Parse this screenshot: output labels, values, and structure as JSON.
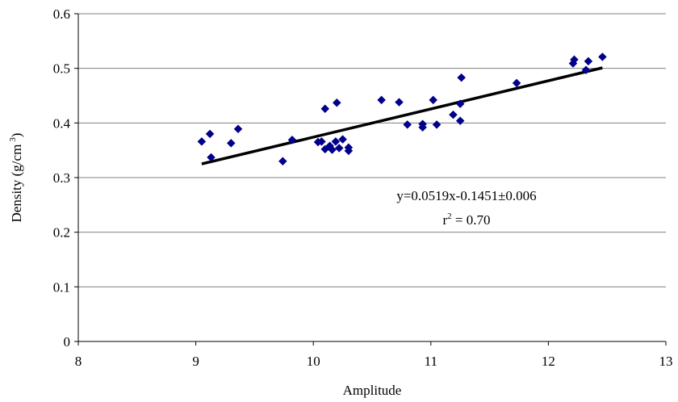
{
  "chart_data": {
    "type": "scatter",
    "xlabel": "Amplitude",
    "ylabel": "Density (g/cm",
    "ylabel_sup": "3",
    "ylabel_close": ")",
    "xlim": [
      8,
      13
    ],
    "ylim": [
      0,
      0.6
    ],
    "xticks": [
      8,
      9,
      10,
      11,
      12,
      13
    ],
    "yticks": [
      0,
      0.1,
      0.2,
      0.3,
      0.4,
      0.5,
      0.6
    ],
    "xtick_labels": [
      "8",
      "9",
      "10",
      "11",
      "12",
      "13"
    ],
    "ytick_labels": [
      "0",
      "0.1",
      "0.2",
      "0.3",
      "0.4",
      "0.5",
      "0.6"
    ],
    "grid": "horizontal",
    "marker": "diamond",
    "colors": {
      "points": "#00008B",
      "trendline": "#000000",
      "grid": "#808080"
    },
    "points": [
      {
        "x": 9.05,
        "y": 0.366
      },
      {
        "x": 9.12,
        "y": 0.38
      },
      {
        "x": 9.13,
        "y": 0.337
      },
      {
        "x": 9.3,
        "y": 0.363
      },
      {
        "x": 9.36,
        "y": 0.389
      },
      {
        "x": 9.74,
        "y": 0.33
      },
      {
        "x": 9.82,
        "y": 0.369
      },
      {
        "x": 10.04,
        "y": 0.365
      },
      {
        "x": 10.07,
        "y": 0.366
      },
      {
        "x": 10.1,
        "y": 0.352
      },
      {
        "x": 10.1,
        "y": 0.426
      },
      {
        "x": 10.14,
        "y": 0.358
      },
      {
        "x": 10.16,
        "y": 0.351
      },
      {
        "x": 10.19,
        "y": 0.366
      },
      {
        "x": 10.2,
        "y": 0.437
      },
      {
        "x": 10.22,
        "y": 0.354
      },
      {
        "x": 10.25,
        "y": 0.37
      },
      {
        "x": 10.3,
        "y": 0.355
      },
      {
        "x": 10.3,
        "y": 0.349
      },
      {
        "x": 10.58,
        "y": 0.442
      },
      {
        "x": 10.73,
        "y": 0.438
      },
      {
        "x": 10.8,
        "y": 0.397
      },
      {
        "x": 10.93,
        "y": 0.398
      },
      {
        "x": 10.93,
        "y": 0.392
      },
      {
        "x": 11.02,
        "y": 0.442
      },
      {
        "x": 11.05,
        "y": 0.397
      },
      {
        "x": 11.19,
        "y": 0.415
      },
      {
        "x": 11.25,
        "y": 0.404
      },
      {
        "x": 11.25,
        "y": 0.435
      },
      {
        "x": 11.26,
        "y": 0.483
      },
      {
        "x": 11.73,
        "y": 0.473
      },
      {
        "x": 12.21,
        "y": 0.509
      },
      {
        "x": 12.22,
        "y": 0.516
      },
      {
        "x": 12.32,
        "y": 0.497
      },
      {
        "x": 12.34,
        "y": 0.513
      },
      {
        "x": 12.46,
        "y": 0.521
      }
    ],
    "trendline": {
      "x": [
        9.05,
        12.46
      ],
      "y": [
        0.325,
        0.501
      ]
    },
    "annotations": {
      "equation": "y=0.0519x-0.1451±0.006",
      "r2_prefix": "r",
      "r2_sup": "2",
      "r2_suffix": " = 0.70"
    }
  }
}
